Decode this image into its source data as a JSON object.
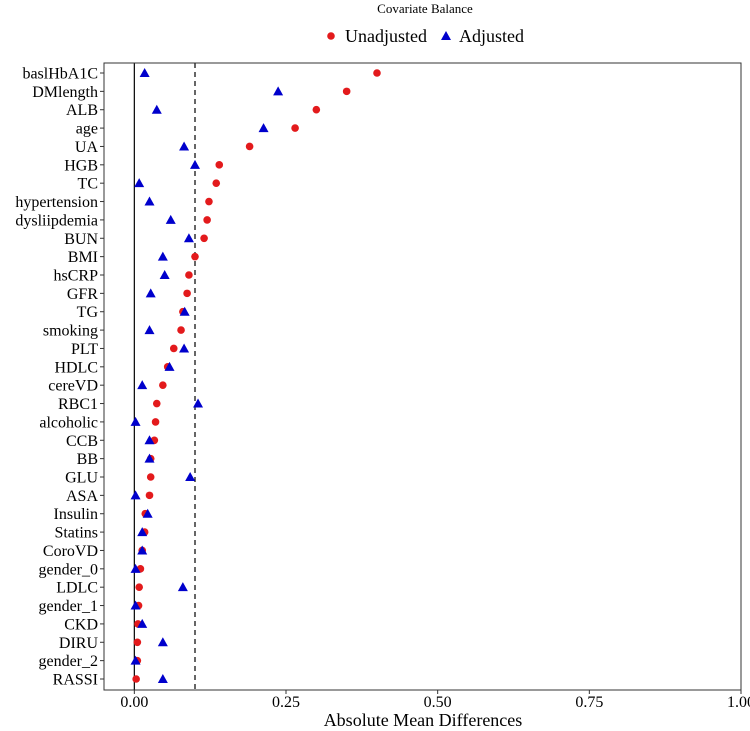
{
  "chart_data": {
    "type": "scatter",
    "title": "Covariate Balance",
    "xlabel": "Absolute Mean Differences",
    "ylabel": "",
    "xlim": [
      -0.05,
      1.0
    ],
    "xticks": [
      "0.00",
      "0.25",
      "0.50",
      "0.75",
      "1.00"
    ],
    "xtick_values": [
      0,
      0.25,
      0.5,
      0.75,
      1.0
    ],
    "reference_lines": [
      0,
      0.1
    ],
    "grid": false,
    "legend_position": "top",
    "categories": [
      "baslHbA1C",
      "DMlength",
      "ALB",
      "age",
      "UA",
      "HGB",
      "TC",
      "hypertension",
      "dysliipdemia",
      "BUN",
      "BMI",
      "hsCRP",
      "GFR",
      "TG",
      "smoking",
      "PLT",
      "HDLC",
      "cereVD",
      "RBC1",
      "alcoholic",
      "CCB",
      "BB",
      "GLU",
      "ASA",
      "Insulin",
      "Statins",
      "CoroVD",
      "gender_0",
      "LDLC",
      "gender_1",
      "CKD",
      "DIRU",
      "gender_2",
      "RASSI"
    ],
    "series": [
      {
        "name": "Unadjusted",
        "color": "#e31a1c",
        "marker": "circle",
        "values": [
          0.4,
          0.35,
          0.3,
          0.265,
          0.19,
          0.14,
          0.135,
          0.123,
          0.12,
          0.115,
          0.1,
          0.09,
          0.087,
          0.08,
          0.077,
          0.065,
          0.055,
          0.047,
          0.037,
          0.035,
          0.033,
          0.027,
          0.027,
          0.025,
          0.018,
          0.017,
          0.013,
          0.01,
          0.008,
          0.007,
          0.006,
          0.005,
          0.005,
          0.003
        ]
      },
      {
        "name": "Adjusted",
        "color": "#0000cc",
        "marker": "triangle",
        "values": [
          0.017,
          0.237,
          0.037,
          0.213,
          0.082,
          0.1,
          0.008,
          0.025,
          0.06,
          0.09,
          0.047,
          0.05,
          0.027,
          0.083,
          0.025,
          0.082,
          0.058,
          0.013,
          0.105,
          0.002,
          0.025,
          0.025,
          0.092,
          0.002,
          0.022,
          0.013,
          0.013,
          0.002,
          0.08,
          0.002,
          0.013,
          0.047,
          0.002,
          0.047
        ]
      }
    ]
  }
}
